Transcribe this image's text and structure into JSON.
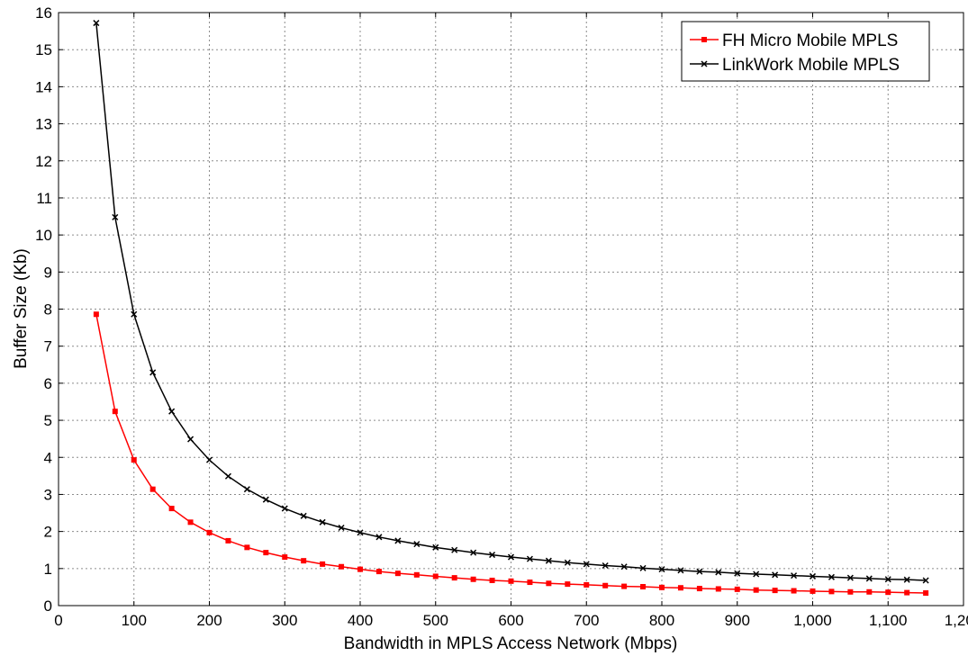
{
  "chart_data": {
    "type": "line",
    "title": "",
    "xlabel": "Bandwidth in MPLS Access Network (Mbps)",
    "ylabel": "Buffer Size (Kb)",
    "xlim": [
      0,
      1200
    ],
    "ylim": [
      0,
      16
    ],
    "xticks": [
      0,
      100,
      200,
      300,
      400,
      500,
      600,
      700,
      800,
      900,
      1000,
      1100,
      1200
    ],
    "xtick_labels": [
      "0",
      "100",
      "200",
      "300",
      "400",
      "500",
      "600",
      "700",
      "800",
      "900",
      "1,000",
      "1,100",
      "1,200"
    ],
    "yticks": [
      0,
      1,
      2,
      3,
      4,
      5,
      6,
      7,
      8,
      9,
      10,
      11,
      12,
      13,
      14,
      15,
      16
    ],
    "ytick_labels": [
      "0",
      "1",
      "2",
      "3",
      "4",
      "5",
      "6",
      "7",
      "8",
      "9",
      "10",
      "11",
      "12",
      "13",
      "14",
      "15",
      "16"
    ],
    "grid": true,
    "legend_position": "top-right",
    "x": [
      50,
      75,
      100,
      125,
      150,
      175,
      200,
      225,
      250,
      275,
      300,
      325,
      350,
      375,
      400,
      425,
      450,
      475,
      500,
      525,
      550,
      575,
      600,
      625,
      650,
      675,
      700,
      725,
      750,
      775,
      800,
      825,
      850,
      875,
      900,
      925,
      950,
      975,
      1000,
      1025,
      1050,
      1075,
      1100,
      1125,
      1150
    ],
    "series": [
      {
        "name": "FH Micro Mobile MPLS",
        "color": "#ff0000",
        "marker": "square",
        "values": [
          7.86,
          5.24,
          3.93,
          3.14,
          2.62,
          2.25,
          1.97,
          1.75,
          1.57,
          1.43,
          1.31,
          1.21,
          1.12,
          1.05,
          0.98,
          0.92,
          0.87,
          0.83,
          0.79,
          0.75,
          0.71,
          0.68,
          0.66,
          0.63,
          0.6,
          0.58,
          0.56,
          0.54,
          0.52,
          0.51,
          0.49,
          0.48,
          0.46,
          0.45,
          0.44,
          0.42,
          0.41,
          0.4,
          0.39,
          0.38,
          0.37,
          0.37,
          0.36,
          0.35,
          0.34
        ]
      },
      {
        "name": "LinkWork Mobile MPLS",
        "color": "#000000",
        "marker": "x",
        "values": [
          15.72,
          10.48,
          7.86,
          6.29,
          5.24,
          4.49,
          3.93,
          3.49,
          3.14,
          2.86,
          2.62,
          2.42,
          2.25,
          2.1,
          1.97,
          1.85,
          1.75,
          1.66,
          1.57,
          1.5,
          1.43,
          1.37,
          1.31,
          1.26,
          1.21,
          1.16,
          1.12,
          1.08,
          1.05,
          1.01,
          0.98,
          0.95,
          0.92,
          0.9,
          0.87,
          0.85,
          0.83,
          0.81,
          0.79,
          0.77,
          0.75,
          0.73,
          0.71,
          0.7,
          0.68
        ]
      }
    ]
  }
}
